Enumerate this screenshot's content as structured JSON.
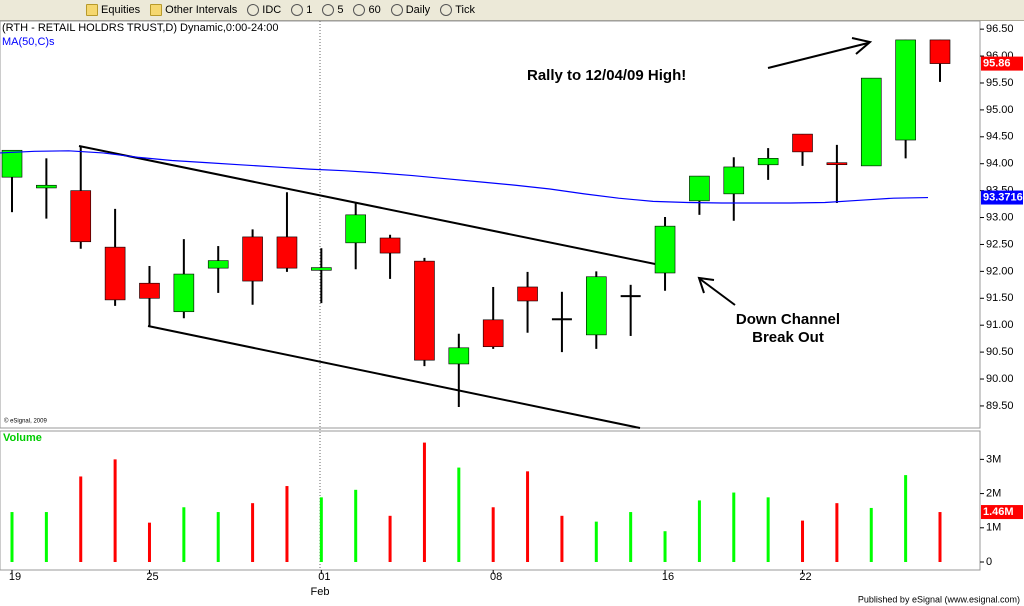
{
  "toolbar": {
    "items": [
      "Equities",
      "Other Intervals",
      "IDC",
      "1",
      "5",
      "60",
      "Daily",
      "Tick"
    ]
  },
  "chart_data": [
    {
      "type": "candlestick",
      "title": "(RTH - RETAIL HOLDRS TRUST,D) Dynamic,0:00-24:00",
      "series": [
        {
          "open": [
            93.75,
            93.55,
            93.5,
            92.45,
            91.78,
            91.25,
            92.06,
            92.64,
            92.64,
            92.02,
            92.53,
            92.62,
            92.19,
            90.28,
            91.1,
            91.71,
            91.11,
            90.82,
            91.54,
            91.97,
            93.31,
            93.44,
            93.98,
            94.55,
            94.0,
            93.96,
            94.44,
            96.3
          ],
          "high": [
            94.25,
            94.1,
            94.33,
            93.16,
            92.1,
            92.6,
            92.47,
            92.78,
            93.47,
            92.43,
            93.27,
            92.68,
            92.25,
            90.84,
            91.71,
            91.99,
            91.62,
            92.0,
            91.75,
            93.01,
            93.77,
            94.12,
            94.29,
            94.55,
            94.35,
            95.59,
            96.3,
            96.3
          ],
          "low": [
            93.1,
            92.98,
            92.42,
            91.36,
            90.97,
            91.13,
            91.6,
            91.38,
            91.99,
            91.41,
            92.04,
            91.86,
            90.24,
            89.48,
            90.56,
            90.86,
            90.5,
            90.56,
            90.8,
            91.64,
            93.05,
            92.94,
            93.7,
            93.96,
            93.27,
            93.96,
            94.1,
            95.52
          ],
          "close": [
            94.25,
            93.6,
            92.55,
            91.47,
            91.5,
            91.95,
            92.2,
            91.82,
            92.06,
            92.07,
            93.05,
            92.34,
            90.35,
            90.58,
            90.6,
            91.45,
            91.11,
            91.9,
            91.54,
            92.84,
            93.77,
            93.94,
            94.1,
            94.22,
            93.98,
            95.59,
            96.3,
            95.86
          ],
          "up_color": "#00ff00",
          "down_color": "#ff0000",
          "flat_color": "#000000"
        },
        {
          "name": "MA(50,C)s",
          "type": "line",
          "color": "#0000ff",
          "values": [
            94.2,
            94.23,
            94.24,
            94.2,
            94.12,
            94.06,
            94.02,
            93.98,
            93.94,
            93.9,
            93.87,
            93.83,
            93.78,
            93.72,
            93.66,
            93.6,
            93.53,
            93.44,
            93.36,
            93.3,
            93.28,
            93.27,
            93.27,
            93.27,
            93.28,
            93.32,
            93.36,
            93.3716
          ]
        }
      ],
      "ylim": [
        89.09,
        96.67
      ],
      "yticks": [
        {
          "value": 89.5,
          "label": "89.50"
        },
        {
          "value": 90,
          "label": "90.00"
        },
        {
          "value": 90.5,
          "label": "90.50"
        },
        {
          "value": 91,
          "label": "91.00"
        },
        {
          "value": 91.5,
          "label": "91.50"
        },
        {
          "value": 92,
          "label": "92.00"
        },
        {
          "value": 92.5,
          "label": "92.50"
        },
        {
          "value": 93,
          "label": "93.00"
        },
        {
          "value": 93.5,
          "label": "93.50"
        },
        {
          "value": 94,
          "label": "94.00"
        },
        {
          "value": 94.5,
          "label": "94.50"
        },
        {
          "value": 95,
          "label": "95.00"
        },
        {
          "value": 95.5,
          "label": "95.50"
        },
        {
          "value": 96,
          "label": "96.00"
        },
        {
          "value": 96.5,
          "label": "96.50"
        }
      ],
      "annotations": [
        "Rally to 12/04/09 High!",
        "Down Channel",
        "Break Out"
      ],
      "copyright": "© eSignal, 2009"
    },
    {
      "type": "bar",
      "title": "Volume",
      "categories": [
        "19",
        null,
        null,
        null,
        "25",
        null,
        null,
        null,
        null,
        "01",
        null,
        null,
        null,
        null,
        "08",
        null,
        null,
        null,
        null,
        "16",
        null,
        null,
        null,
        "22",
        null,
        null,
        null,
        null
      ],
      "month_label": "Feb",
      "values": [
        1.46,
        1.46,
        2.5,
        3.0,
        1.15,
        1.6,
        1.46,
        1.72,
        2.22,
        1.89,
        2.11,
        1.35,
        3.49,
        2.76,
        1.6,
        2.65,
        1.35,
        1.18,
        1.46,
        0.9,
        1.8,
        2.03,
        1.89,
        1.21,
        1.72,
        1.58,
        2.54,
        1.46
      ],
      "value_labels": [
        null,
        null,
        null,
        null,
        null,
        null,
        null,
        null,
        null,
        null,
        null,
        null,
        null,
        null,
        null,
        null,
        null,
        null,
        null,
        null,
        null,
        null,
        null,
        null,
        null,
        null,
        null,
        "1.46M"
      ],
      "colors": [
        "#00ff00",
        "#00ff00",
        "#ff0000",
        "#ff0000",
        "#ff0000",
        "#00ff00",
        "#00ff00",
        "#ff0000",
        "#ff0000",
        "#00ff00",
        "#00ff00",
        "#ff0000",
        "#ff0000",
        "#00ff00",
        "#ff0000",
        "#ff0000",
        "#ff0000",
        "#00ff00",
        "#00ff00",
        "#00ff00",
        "#00ff00",
        "#00ff00",
        "#00ff00",
        "#ff0000",
        "#ff0000",
        "#00ff00",
        "#00ff00",
        "#ff0000"
      ],
      "ylim": [
        0,
        3.8
      ],
      "yticks": [
        0,
        {
          "value": 1,
          "label": "1M"
        },
        {
          "value": 2,
          "label": "2M"
        },
        {
          "value": 3,
          "label": "3M"
        }
      ]
    }
  ],
  "footer": "Published by eSignal (www.esignal.com)"
}
